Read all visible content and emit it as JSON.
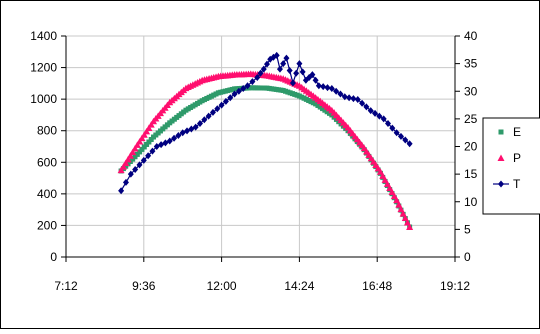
{
  "chart_data": {
    "type": "scatter",
    "x_axis": {
      "ticks": [
        "7:12",
        "9:36",
        "12:00",
        "14:24",
        "16:48",
        "19:12"
      ],
      "min_hours": 7.2,
      "max_hours": 19.2
    },
    "y_left": {
      "min": 0,
      "max": 1400,
      "step": 200,
      "ticks": [
        "0",
        "200",
        "400",
        "600",
        "800",
        "1000",
        "1200",
        "1400"
      ]
    },
    "y_right": {
      "min": 0,
      "max": 40,
      "step": 5,
      "ticks": [
        "0",
        "5",
        "10",
        "15",
        "20",
        "25",
        "30",
        "35",
        "40"
      ]
    },
    "grid": true,
    "legend_position": "right",
    "series": [
      {
        "name": "E",
        "marker": "square",
        "color": "#2e9a6a",
        "axis": "left",
        "time": [
          "08:54",
          "09:24",
          "09:54",
          "10:24",
          "10:54",
          "11:24",
          "11:54",
          "12:24",
          "12:54",
          "13:24",
          "13:54",
          "14:24",
          "14:54",
          "15:24",
          "15:54",
          "16:24",
          "16:54",
          "17:24",
          "17:48"
        ],
        "values": [
          545,
          650,
          760,
          850,
          930,
          990,
          1040,
          1065,
          1072,
          1070,
          1055,
          1020,
          970,
          900,
          800,
          680,
          530,
          350,
          190
        ]
      },
      {
        "name": "P",
        "marker": "triangle",
        "color": "#ff0f6f",
        "axis": "left",
        "time": [
          "08:54",
          "09:24",
          "09:54",
          "10:24",
          "10:54",
          "11:24",
          "11:54",
          "12:24",
          "12:54",
          "13:24",
          "13:54",
          "14:24",
          "14:54",
          "15:24",
          "15:54",
          "16:24",
          "16:54",
          "17:24",
          "17:48"
        ],
        "values": [
          550,
          710,
          860,
          980,
          1070,
          1120,
          1145,
          1155,
          1160,
          1150,
          1130,
          1085,
          1010,
          930,
          820,
          690,
          540,
          360,
          190
        ]
      },
      {
        "name": "T",
        "marker": "diamond",
        "color": "#000080",
        "axis": "right",
        "time": [
          "08:54",
          "09:12",
          "09:36",
          "10:00",
          "10:24",
          "10:48",
          "11:12",
          "11:36",
          "12:00",
          "12:24",
          "12:48",
          "13:06",
          "13:18",
          "13:30",
          "13:42",
          "13:48",
          "14:00",
          "14:12",
          "14:24",
          "14:36",
          "14:48",
          "15:00",
          "15:24",
          "15:48",
          "16:12",
          "16:36",
          "17:00",
          "17:24",
          "17:48"
        ],
        "values": [
          12.0,
          15.0,
          17.5,
          20.0,
          21.0,
          22.5,
          23.5,
          25.5,
          27.5,
          29.5,
          31.0,
          32.5,
          34.0,
          35.8,
          36.5,
          34.0,
          36.0,
          31.5,
          35.0,
          32.0,
          33.0,
          31.0,
          30.5,
          29.0,
          28.5,
          26.5,
          25.0,
          22.5,
          20.5
        ]
      }
    ]
  }
}
